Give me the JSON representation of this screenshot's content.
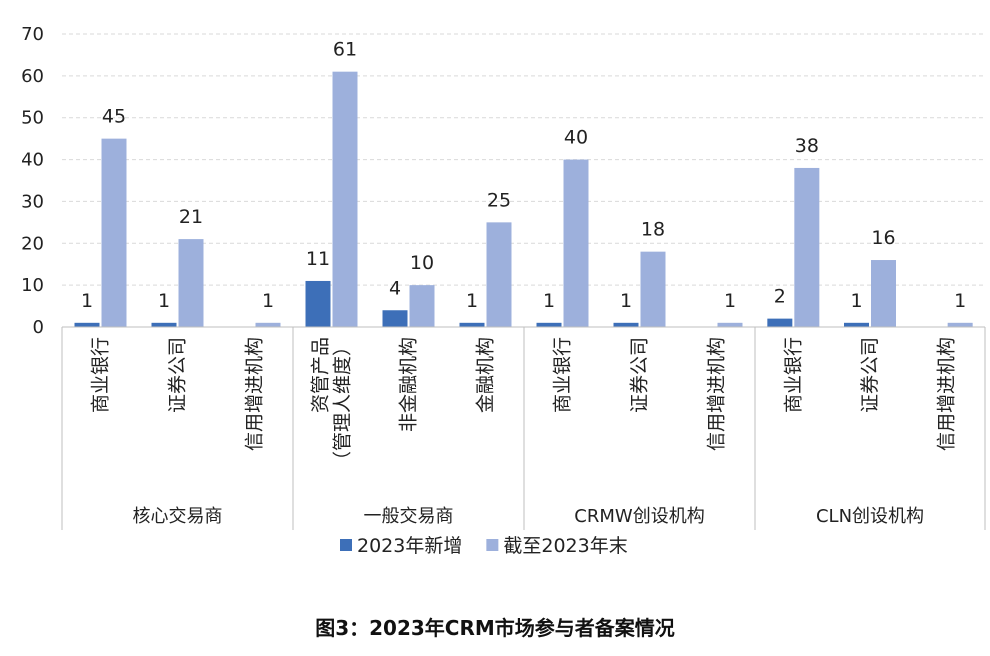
{
  "caption": "图3：2023年CRM市场参与者备案情况",
  "chart_data": {
    "type": "bar",
    "ylim": [
      0,
      70
    ],
    "yticks": [
      0,
      10,
      20,
      30,
      40,
      50,
      60,
      70
    ],
    "grid": true,
    "legend_position": "bottom",
    "groups": [
      {
        "name": "核心交易商",
        "categories": [
          "商业银行",
          "证券公司",
          "信用增进机构"
        ]
      },
      {
        "name": "一般交易商",
        "categories": [
          "资管产品\n（管理人维度）",
          "非金融机构",
          "金融机构"
        ]
      },
      {
        "name": "CRMW创设机构",
        "categories": [
          "商业银行",
          "证券公司",
          "信用增进机构"
        ]
      },
      {
        "name": "CLN创设机构",
        "categories": [
          "商业银行",
          "证券公司",
          "信用增进机构"
        ]
      }
    ],
    "series": [
      {
        "name": "2023年新增",
        "color": "#3d6fb8",
        "values": [
          1,
          1,
          null,
          11,
          4,
          1,
          1,
          1,
          null,
          2,
          1,
          null
        ]
      },
      {
        "name": "截至2023年末",
        "color": "#9db0dc",
        "values": [
          45,
          21,
          1,
          61,
          10,
          25,
          40,
          18,
          1,
          38,
          16,
          1
        ]
      }
    ]
  }
}
